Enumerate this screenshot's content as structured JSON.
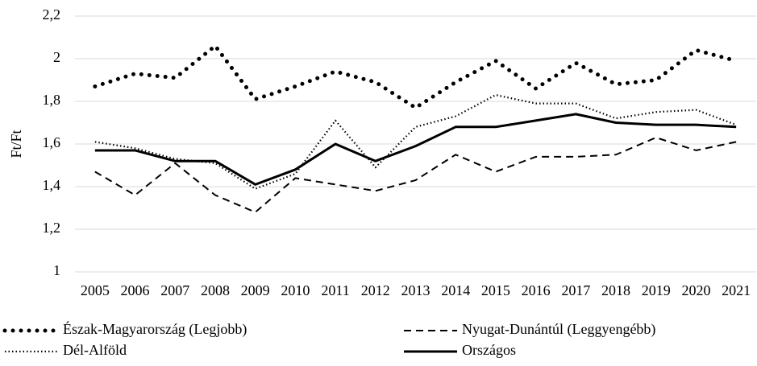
{
  "chart_data": {
    "type": "line",
    "y_label": "Ft/Ft",
    "categories": [
      "2005",
      "2006",
      "2007",
      "2008",
      "2009",
      "2010",
      "2011",
      "2012",
      "2013",
      "2014",
      "2015",
      "2016",
      "2017",
      "2018",
      "2019",
      "2020",
      "2021"
    ],
    "series": [
      {
        "name": "Észak-Magyarország (Legjobb)",
        "color": "#000000",
        "line_style": "dotted-bold",
        "values": [
          1.87,
          1.93,
          1.91,
          2.06,
          1.81,
          1.87,
          1.94,
          1.89,
          1.77,
          1.89,
          1.99,
          1.86,
          1.98,
          1.88,
          1.9,
          2.04,
          1.99
        ]
      },
      {
        "name": "Nyugat-Dunántúl (Leggyengébb)",
        "color": "#000000",
        "line_style": "dashed",
        "values": [
          1.47,
          1.36,
          1.51,
          1.36,
          1.28,
          1.44,
          1.41,
          1.38,
          1.43,
          1.55,
          1.47,
          1.54,
          1.54,
          1.55,
          1.63,
          1.57,
          1.61
        ]
      },
      {
        "name": "Dél-Alföld",
        "color": "#000000",
        "line_style": "dotted",
        "values": [
          1.61,
          1.58,
          1.53,
          1.51,
          1.39,
          1.46,
          1.71,
          1.49,
          1.68,
          1.73,
          1.83,
          1.79,
          1.79,
          1.72,
          1.75,
          1.76,
          1.69
        ]
      },
      {
        "name": "Országos",
        "color": "#000000",
        "line_style": "solid",
        "values": [
          1.57,
          1.57,
          1.52,
          1.52,
          1.41,
          1.48,
          1.6,
          1.52,
          1.59,
          1.68,
          1.68,
          1.71,
          1.74,
          1.7,
          1.69,
          1.69,
          1.68
        ]
      }
    ],
    "ylim": [
      1,
      2.2
    ],
    "yticks": [
      1,
      {
        "value": 1.2,
        "label": "1,2"
      },
      {
        "value": 1.4,
        "label": "1,4"
      },
      {
        "value": 1.6,
        "label": "1,6"
      },
      {
        "value": 1.8,
        "label": "1,8"
      },
      2,
      {
        "value": 2.2,
        "label": "2,2"
      }
    ],
    "grid": true,
    "legend": "bottom"
  }
}
